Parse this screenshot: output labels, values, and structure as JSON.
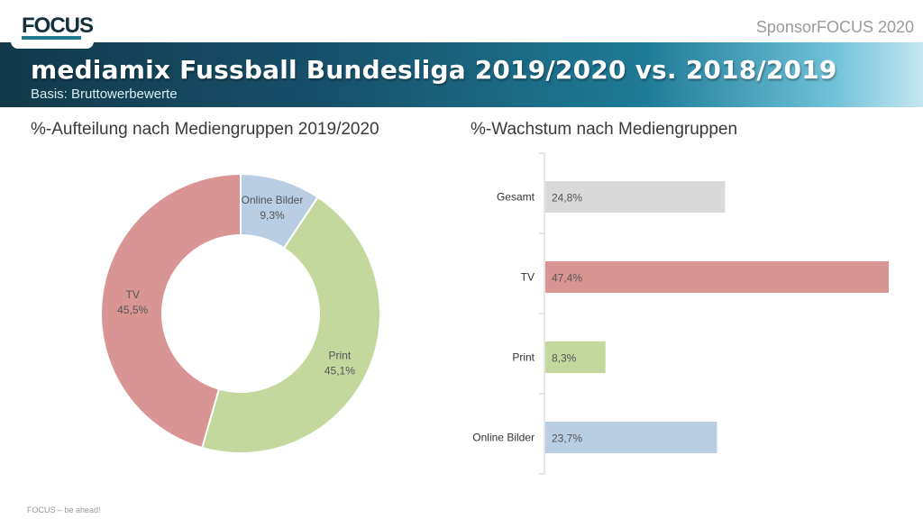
{
  "header": {
    "logo_text": "FOCUS",
    "brand_line": "SponsorFOCUS 2020",
    "title": "mediamix Fussball Bundesliga 2019/2020 vs. 2018/2019",
    "subtitle": "Basis: Bruttowerbewerte"
  },
  "colors": {
    "online": "#b9cde3",
    "print": "#c4d89e",
    "tv": "#d99594",
    "gesamt": "#d9d9d9"
  },
  "chart_data": [
    {
      "type": "pie",
      "title": "%-Aufteilung nach Mediengruppen 2019/2020",
      "donut": true,
      "slices": [
        {
          "label": "Online Bilder",
          "value": 9.3,
          "value_label": "9,3%",
          "color": "#b9cde3"
        },
        {
          "label": "Print",
          "value": 45.1,
          "value_label": "45,1%",
          "color": "#c4d89e"
        },
        {
          "label": "TV",
          "value": 45.5,
          "value_label": "45,5%",
          "color": "#d99594"
        }
      ]
    },
    {
      "type": "bar",
      "orientation": "horizontal",
      "title": "%-Wachstum nach Mediengruppen",
      "categories": [
        "Gesamt",
        "TV",
        "Print",
        "Online Bilder"
      ],
      "values": [
        24.8,
        47.4,
        8.3,
        23.7
      ],
      "value_labels": [
        "24,8%",
        "47,4%",
        "8,3%",
        "23,7%"
      ],
      "colors": [
        "#d9d9d9",
        "#d99594",
        "#c4d89e",
        "#b9cde3"
      ],
      "xlim": [
        0,
        50
      ],
      "grid": false
    }
  ],
  "footer": "FOCUS – be ahead!"
}
